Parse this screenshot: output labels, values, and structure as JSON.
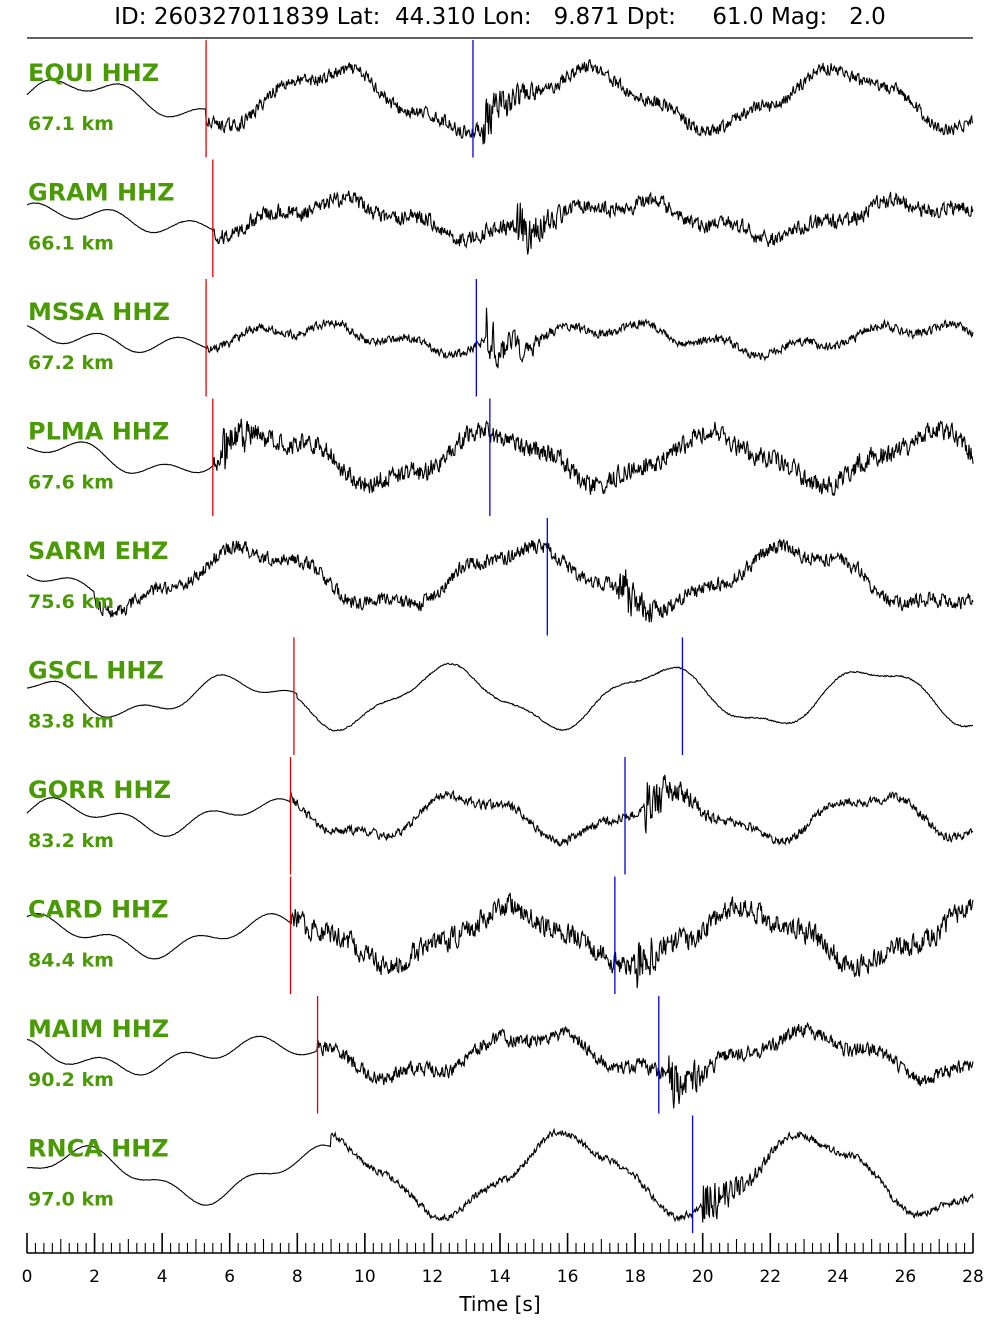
{
  "header": {
    "id_label": "ID:",
    "id_value": "260327011839",
    "lat_label": "Lat:",
    "lat_value": "44.310",
    "lon_label": "Lon:",
    "lon_value": "9.871",
    "dpt_label": "Dpt:",
    "dpt_value": "61.0",
    "mag_label": "Mag:",
    "mag_value": "2.0"
  },
  "colors": {
    "label": "#4a9a06",
    "p_pick": "#e00000",
    "s_pick": "#0000e0",
    "trace": "#000000"
  },
  "chart_data": {
    "type": "line",
    "xlabel": "Time [s]",
    "xlim": [
      0,
      28
    ],
    "x_ticks": [
      0,
      2,
      4,
      6,
      8,
      10,
      12,
      14,
      16,
      18,
      20,
      22,
      24,
      26,
      28
    ],
    "minor_tick_step": 0.25,
    "grid": false,
    "traces": [
      {
        "station": "EQUI HHZ",
        "distance": "67.1 km",
        "p_pick": 5.3,
        "s_pick": 13.2,
        "period": 7.5,
        "phase": 0.3,
        "amp": 0.55,
        "noise": 0.18,
        "onset": 5.3,
        "burst": 13.5
      },
      {
        "station": "GRAM HHZ",
        "distance": "66.1 km",
        "p_pick": 5.5,
        "s_pick": null,
        "period": 8.5,
        "phase": 1.1,
        "amp": 0.3,
        "noise": 0.22,
        "onset": 5.5,
        "burst": 14.5
      },
      {
        "station": "MSSA HHZ",
        "distance": "67.2 km",
        "p_pick": 5.3,
        "s_pick": 13.3,
        "period": 9.0,
        "phase": 2.0,
        "amp": 0.22,
        "noise": 0.12,
        "onset": 5.3,
        "burst": 13.6
      },
      {
        "station": "PLMA HHZ",
        "distance": "67.6 km",
        "p_pick": 5.5,
        "s_pick": 13.7,
        "period": 6.5,
        "phase": 0.8,
        "amp": 0.45,
        "noise": 0.28,
        "onset": 5.5,
        "burst": 5.8
      },
      {
        "station": "SARM EHZ",
        "distance": "75.6 km",
        "p_pick": null,
        "s_pick": 15.4,
        "period": 8.0,
        "phase": 2.6,
        "amp": 0.55,
        "noise": 0.2,
        "onset": 2.0,
        "burst": 17.5
      },
      {
        "station": "GSCL HHZ",
        "distance": "83.8 km",
        "p_pick": 7.9,
        "s_pick": 19.4,
        "period": 6.3,
        "phase": 1.7,
        "amp": 0.55,
        "noise": 0.02,
        "onset": 8.0,
        "burst": 30
      },
      {
        "station": "GORR HHZ",
        "distance": "83.2 km",
        "p_pick": 7.8,
        "s_pick": 17.7,
        "period": 6.0,
        "phase": 0.5,
        "amp": 0.4,
        "noise": 0.12,
        "onset": 7.8,
        "burst": 18.3
      },
      {
        "station": "CARD HHZ",
        "distance": "84.4 km",
        "p_pick": 7.8,
        "s_pick": 17.4,
        "period": 7.0,
        "phase": 1.3,
        "amp": 0.5,
        "noise": 0.3,
        "onset": 7.8,
        "burst": 18.0
      },
      {
        "station": "MAIM HHZ",
        "distance": "90.2 km",
        "p_pick": 8.6,
        "s_pick": 18.7,
        "period": 8.0,
        "phase": 2.3,
        "amp": 0.4,
        "noise": 0.2,
        "onset": 8.6,
        "burst": 19.0
      },
      {
        "station": "RNCA HHZ",
        "distance": "97.0 km",
        "p_pick": null,
        "s_pick": 19.7,
        "period": 7.2,
        "phase": 0.2,
        "amp": 0.75,
        "noise": 0.1,
        "onset": 9.0,
        "burst": 20.0
      }
    ]
  }
}
